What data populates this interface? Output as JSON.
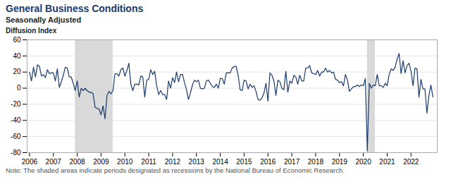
{
  "chart_data": {
    "type": "line",
    "title": "General Business Conditions",
    "subtitle": "Seasonally Adjusted",
    "ylabel": "Diffusion Index",
    "note": "Note: The shaded areas indicate periods designated as recessions by the National Bureau of Economic Research.",
    "color": "#1a3a6b",
    "bands": {
      "color": "#d9d9d9",
      "ranges": [
        [
          2007.917,
          2009.5
        ],
        [
          2020.167,
          2020.5
        ]
      ]
    },
    "xlim": [
      2005.9,
      2023.1
    ],
    "xticks": [
      2006,
      2007,
      2008,
      2009,
      2010,
      2011,
      2012,
      2013,
      2014,
      2015,
      2016,
      2017,
      2018,
      2019,
      2020,
      2021,
      2022
    ],
    "ylim": [
      -80,
      60
    ],
    "yticks": [
      -80,
      -60,
      -40,
      -20,
      0,
      20,
      40,
      60
    ],
    "grid": true,
    "x": [
      2006.0,
      2006.083,
      2006.167,
      2006.25,
      2006.333,
      2006.417,
      2006.5,
      2006.583,
      2006.667,
      2006.75,
      2006.833,
      2006.917,
      2007.0,
      2007.083,
      2007.167,
      2007.25,
      2007.333,
      2007.417,
      2007.5,
      2007.583,
      2007.667,
      2007.75,
      2007.833,
      2007.917,
      2008.0,
      2008.083,
      2008.167,
      2008.25,
      2008.333,
      2008.417,
      2008.5,
      2008.583,
      2008.667,
      2008.75,
      2008.833,
      2008.917,
      2009.0,
      2009.083,
      2009.167,
      2009.25,
      2009.333,
      2009.417,
      2009.5,
      2009.583,
      2009.667,
      2009.75,
      2009.833,
      2009.917,
      2010.0,
      2010.083,
      2010.167,
      2010.25,
      2010.333,
      2010.417,
      2010.5,
      2010.583,
      2010.667,
      2010.75,
      2010.833,
      2010.917,
      2011.0,
      2011.083,
      2011.167,
      2011.25,
      2011.333,
      2011.417,
      2011.5,
      2011.583,
      2011.667,
      2011.75,
      2011.833,
      2011.917,
      2012.0,
      2012.083,
      2012.167,
      2012.25,
      2012.333,
      2012.417,
      2012.5,
      2012.583,
      2012.667,
      2012.75,
      2012.833,
      2012.917,
      2013.0,
      2013.083,
      2013.167,
      2013.25,
      2013.333,
      2013.417,
      2013.5,
      2013.583,
      2013.667,
      2013.75,
      2013.833,
      2013.917,
      2014.0,
      2014.083,
      2014.167,
      2014.25,
      2014.333,
      2014.417,
      2014.5,
      2014.583,
      2014.667,
      2014.75,
      2014.833,
      2014.917,
      2015.0,
      2015.083,
      2015.167,
      2015.25,
      2015.333,
      2015.417,
      2015.5,
      2015.583,
      2015.667,
      2015.75,
      2015.833,
      2015.917,
      2016.0,
      2016.083,
      2016.167,
      2016.25,
      2016.333,
      2016.417,
      2016.5,
      2016.583,
      2016.667,
      2016.75,
      2016.833,
      2016.917,
      2017.0,
      2017.083,
      2017.167,
      2017.25,
      2017.333,
      2017.417,
      2017.5,
      2017.583,
      2017.667,
      2017.75,
      2017.833,
      2017.917,
      2018.0,
      2018.083,
      2018.167,
      2018.25,
      2018.333,
      2018.417,
      2018.5,
      2018.583,
      2018.667,
      2018.75,
      2018.833,
      2018.917,
      2019.0,
      2019.083,
      2019.167,
      2019.25,
      2019.333,
      2019.417,
      2019.5,
      2019.583,
      2019.667,
      2019.75,
      2019.833,
      2019.917,
      2020.0,
      2020.083,
      2020.167,
      2020.25,
      2020.333,
      2020.417,
      2020.5,
      2020.583,
      2020.667,
      2020.75,
      2020.833,
      2020.917,
      2021.0,
      2021.083,
      2021.167,
      2021.25,
      2021.333,
      2021.417,
      2021.5,
      2021.583,
      2021.667,
      2021.75,
      2021.833,
      2021.917,
      2022.0,
      2022.083,
      2022.167,
      2022.25,
      2022.333,
      2022.417,
      2022.5,
      2022.583,
      2022.667,
      2022.75,
      2022.833,
      2022.917
    ],
    "values": [
      20,
      9,
      26,
      14,
      29,
      27,
      15,
      17,
      13,
      23,
      18,
      19,
      19,
      9,
      24,
      1,
      8,
      16,
      26,
      25,
      14,
      14,
      6,
      -3,
      9,
      -11,
      0,
      -3,
      0,
      -3,
      -5,
      -5,
      -7,
      -24,
      -25,
      -26,
      -33,
      -22,
      -38,
      -9,
      -4,
      -7,
      -3,
      18,
      18,
      15,
      23,
      25,
      15,
      22,
      31,
      5,
      -3,
      5,
      5,
      4,
      15,
      14,
      -11,
      10,
      11,
      23,
      17,
      21,
      3,
      -8,
      -3,
      -8,
      -8,
      -14,
      9,
      0,
      13,
      7,
      20,
      8,
      17,
      17,
      7,
      -2,
      -14,
      -6,
      4,
      10,
      8,
      10,
      0,
      -1,
      0,
      9,
      10,
      6,
      2,
      1,
      5,
      0,
      12,
      12,
      5,
      19,
      19,
      19,
      25,
      27,
      27,
      16,
      -2,
      -3,
      10,
      9,
      -1,
      5,
      1,
      3,
      -4,
      -14,
      -15,
      -12,
      -6,
      6,
      -16,
      19,
      16,
      9,
      -9,
      10,
      8,
      0,
      -2,
      21,
      -5,
      9,
      6,
      16,
      14,
      5,
      16,
      9,
      9,
      25,
      25,
      28,
      19,
      18,
      17,
      22,
      15,
      20,
      20,
      25,
      20,
      22,
      19,
      20,
      11,
      10,
      7,
      8,
      3,
      17,
      10,
      -4,
      -1,
      2,
      2,
      4,
      2,
      4,
      3,
      12,
      -78,
      6,
      0,
      4,
      3,
      17,
      3,
      3,
      1,
      6,
      3,
      17,
      24,
      22,
      26,
      36,
      43,
      18,
      34,
      19,
      28,
      31,
      21,
      3,
      25,
      24,
      -11,
      11,
      -1,
      -1,
      -31,
      -9,
      4,
      -11
    ]
  }
}
